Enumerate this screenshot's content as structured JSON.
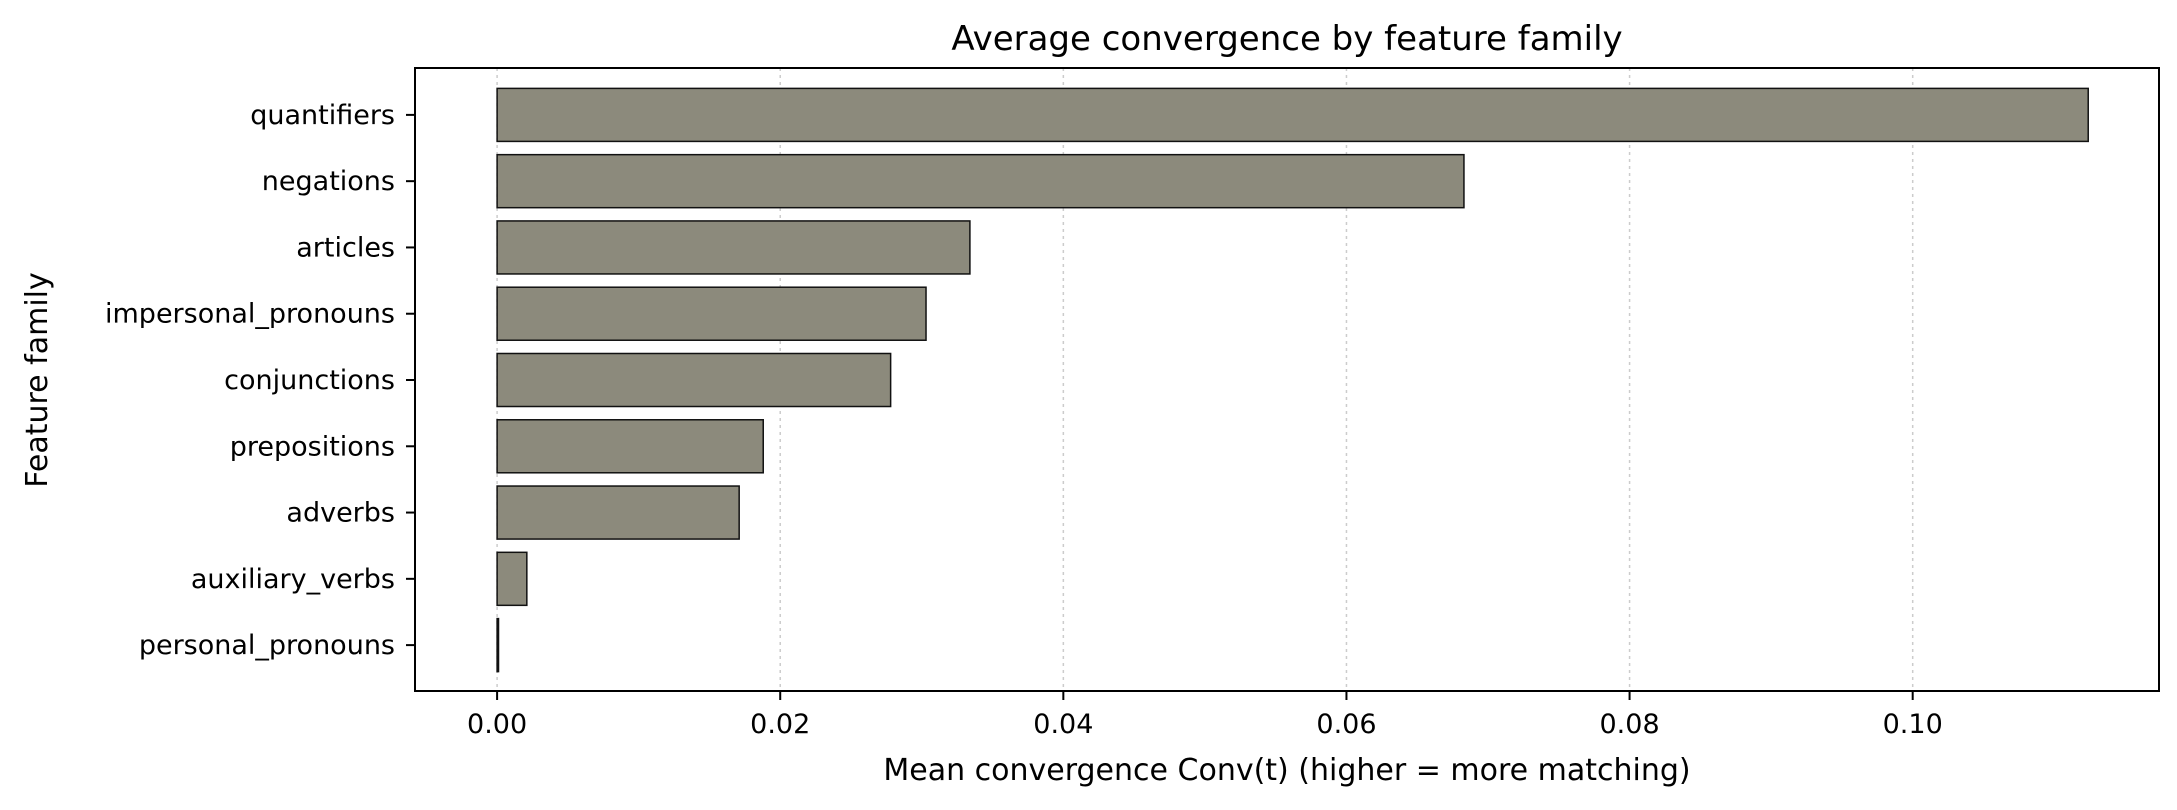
{
  "chart_data": {
    "type": "bar",
    "orientation": "horizontal",
    "title": "Average convergence by feature family",
    "xlabel": "Mean convergence Conv(t) (higher = more matching)",
    "ylabel": "Feature family",
    "categories": [
      "quantifiers",
      "negations",
      "articles",
      "impersonal_pronouns",
      "conjunctions",
      "prepositions",
      "adverbs",
      "auxiliary_verbs",
      "personal_pronouns"
    ],
    "values": [
      0.1124,
      0.0683,
      0.0334,
      0.0303,
      0.0278,
      0.0188,
      0.0171,
      0.0021,
      0.0001
    ],
    "xlim": [
      -0.0058,
      0.1174
    ],
    "xticks": [
      0.0,
      0.02,
      0.04,
      0.06,
      0.08,
      0.1
    ],
    "xtick_labels": [
      "0.00",
      "0.02",
      "0.04",
      "0.06",
      "0.08",
      "0.10"
    ],
    "grid": {
      "x": true,
      "style": "dotted"
    },
    "colors": {
      "bar_fill": "#8c8a7c",
      "bar_edge": "#111111",
      "grid": "#cccccc",
      "axis": "#000000"
    }
  }
}
